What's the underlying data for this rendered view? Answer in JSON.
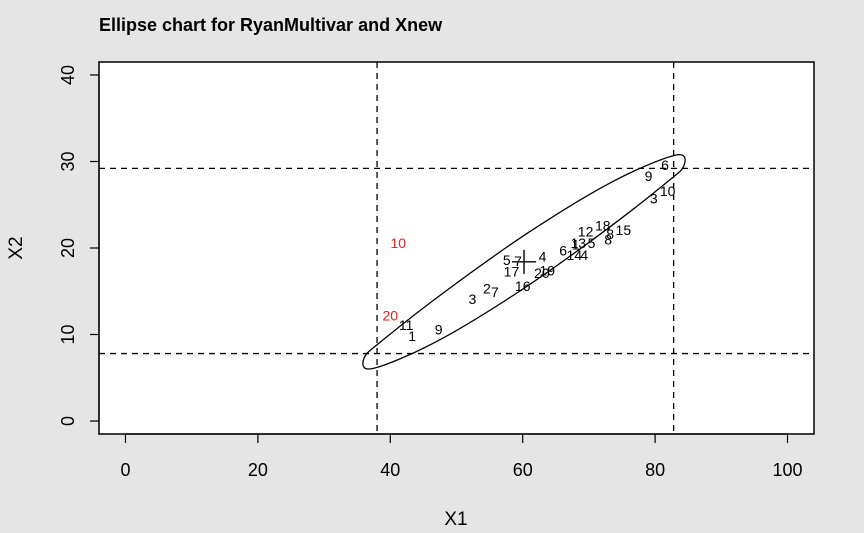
{
  "chart_data": {
    "type": "scatter",
    "title": "Ellipse chart for RyanMultivar and Xnew",
    "xlabel": "X1",
    "ylabel": "X2",
    "xlim": [
      -4,
      104
    ],
    "ylim": [
      -1.5,
      41.5
    ],
    "xticks": [
      0,
      20,
      40,
      60,
      80,
      100
    ],
    "yticks": [
      0,
      10,
      20,
      30,
      40
    ],
    "grid": false,
    "center": {
      "x": 60.2,
      "y": 18.4
    },
    "control_limits": {
      "x": [
        38.0,
        82.8
      ],
      "y": [
        7.8,
        29.2
      ]
    },
    "ellipse": {
      "boundary": [
        [
          37.37,
          6.07
        ],
        [
          46.91,
          9.16
        ],
        [
          59.23,
          14.86
        ],
        [
          71.67,
          21.58
        ],
        [
          81.52,
          27.44
        ],
        [
          84.37,
          29.53
        ],
        [
          83.03,
          30.73
        ],
        [
          73.49,
          27.64
        ],
        [
          61.17,
          21.94
        ],
        [
          48.73,
          15.22
        ],
        [
          38.88,
          9.36
        ],
        [
          36.03,
          7.27
        ],
        [
          37.37,
          6.07
        ]
      ]
    },
    "normal_color": "#000000",
    "outlier_color": "#ee2222",
    "points": [
      {
        "label": "1",
        "x": 43.3,
        "y": 9.8,
        "out": false
      },
      {
        "label": "2",
        "x": 54.6,
        "y": 15.3,
        "out": false
      },
      {
        "label": "3",
        "x": 52.4,
        "y": 14.1,
        "out": false
      },
      {
        "label": "4",
        "x": 63.0,
        "y": 19.0,
        "out": false
      },
      {
        "label": "5",
        "x": 57.6,
        "y": 18.6,
        "out": false
      },
      {
        "label": "6",
        "x": 66.1,
        "y": 19.7,
        "out": false
      },
      {
        "label": "7",
        "x": 55.8,
        "y": 14.9,
        "out": false
      },
      {
        "label": "8",
        "x": 73.2,
        "y": 21.6,
        "out": false
      },
      {
        "label": "9",
        "x": 47.3,
        "y": 10.6,
        "out": false
      },
      {
        "label": "10",
        "x": 81.9,
        "y": 26.6,
        "out": false
      },
      {
        "label": "11",
        "x": 42.4,
        "y": 11.1,
        "out": false
      },
      {
        "label": "12",
        "x": 69.5,
        "y": 21.9,
        "out": false
      },
      {
        "label": "13",
        "x": 68.4,
        "y": 20.6,
        "out": false
      },
      {
        "label": "14",
        "x": 67.8,
        "y": 19.2,
        "out": false
      },
      {
        "label": "15",
        "x": 75.2,
        "y": 22.1,
        "out": false
      },
      {
        "label": "16",
        "x": 60.0,
        "y": 15.6,
        "out": false
      },
      {
        "label": "17",
        "x": 58.3,
        "y": 17.3,
        "out": false
      },
      {
        "label": "18",
        "x": 72.1,
        "y": 22.6,
        "out": false
      },
      {
        "label": "19",
        "x": 63.7,
        "y": 17.4,
        "out": false
      },
      {
        "label": "20",
        "x": 62.9,
        "y": 17.1,
        "out": false
      },
      {
        "label": "3",
        "x": 79.8,
        "y": 25.7,
        "out": false
      },
      {
        "label": "4",
        "x": 69.3,
        "y": 19.2,
        "out": false
      },
      {
        "label": "5",
        "x": 70.4,
        "y": 20.6,
        "out": false
      },
      {
        "label": "6",
        "x": 81.5,
        "y": 29.6,
        "out": false
      },
      {
        "label": "7",
        "x": 59.3,
        "y": 18.5,
        "out": false
      },
      {
        "label": "8",
        "x": 72.9,
        "y": 21.0,
        "out": false
      },
      {
        "label": "9",
        "x": 79.0,
        "y": 28.3,
        "out": false
      },
      {
        "label": "1",
        "x": 68.0,
        "y": 20.4,
        "out": false
      },
      {
        "label": "20",
        "x": 40.0,
        "y": 12.2,
        "out": true
      },
      {
        "label": "10",
        "x": 41.2,
        "y": 20.6,
        "out": true
      }
    ]
  }
}
